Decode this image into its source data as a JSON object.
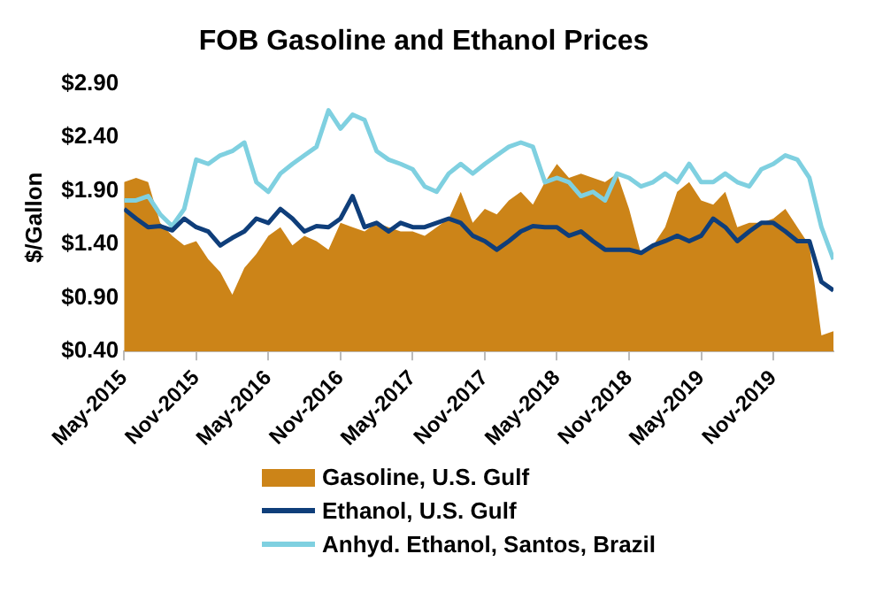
{
  "chart_data": {
    "type": "area",
    "title": "FOB Gasoline and Ethanol Prices",
    "ylabel": "$/Gallon",
    "x": [
      "2015-05",
      "2015-06",
      "2015-07",
      "2015-08",
      "2015-09",
      "2015-10",
      "2015-11",
      "2015-12",
      "2016-01",
      "2016-02",
      "2016-03",
      "2016-04",
      "2016-05",
      "2016-06",
      "2016-07",
      "2016-08",
      "2016-09",
      "2016-10",
      "2016-11",
      "2016-12",
      "2017-01",
      "2017-02",
      "2017-03",
      "2017-04",
      "2017-05",
      "2017-06",
      "2017-07",
      "2017-08",
      "2017-09",
      "2017-10",
      "2017-11",
      "2017-12",
      "2018-01",
      "2018-02",
      "2018-03",
      "2018-04",
      "2018-05",
      "2018-06",
      "2018-07",
      "2018-08",
      "2018-09",
      "2018-10",
      "2018-11",
      "2018-12",
      "2019-01",
      "2019-02",
      "2019-03",
      "2019-04",
      "2019-05",
      "2019-06",
      "2019-07",
      "2019-08",
      "2019-09",
      "2019-10",
      "2019-11",
      "2019-12",
      "2020-01",
      "2020-02",
      "2020-03",
      "2020-04"
    ],
    "series": [
      {
        "name": "Gasoline, U.S. Gulf",
        "type": "area",
        "color": "#cc8418",
        "values": [
          1.98,
          2.02,
          1.98,
          1.6,
          1.48,
          1.39,
          1.43,
          1.26,
          1.14,
          0.93,
          1.18,
          1.31,
          1.48,
          1.56,
          1.39,
          1.48,
          1.43,
          1.35,
          1.6,
          1.56,
          1.52,
          1.6,
          1.56,
          1.52,
          1.52,
          1.48,
          1.56,
          1.64,
          1.89,
          1.6,
          1.73,
          1.68,
          1.81,
          1.89,
          1.77,
          1.98,
          2.15,
          2.02,
          2.06,
          2.02,
          1.98,
          2.06,
          1.73,
          1.31,
          1.39,
          1.56,
          1.89,
          1.98,
          1.81,
          1.77,
          1.89,
          1.56,
          1.6,
          1.6,
          1.64,
          1.73,
          1.56,
          1.39,
          0.55,
          0.59
        ]
      },
      {
        "name": "Ethanol, U.S. Gulf",
        "type": "line",
        "color": "#0f3e7a",
        "values": [
          1.73,
          1.64,
          1.56,
          1.57,
          1.53,
          1.64,
          1.56,
          1.52,
          1.39,
          1.46,
          1.52,
          1.64,
          1.6,
          1.73,
          1.64,
          1.52,
          1.57,
          1.56,
          1.64,
          1.85,
          1.56,
          1.6,
          1.52,
          1.6,
          1.56,
          1.56,
          1.6,
          1.64,
          1.6,
          1.48,
          1.43,
          1.35,
          1.43,
          1.52,
          1.57,
          1.56,
          1.56,
          1.48,
          1.52,
          1.43,
          1.35,
          1.35,
          1.35,
          1.32,
          1.39,
          1.43,
          1.48,
          1.43,
          1.48,
          1.64,
          1.56,
          1.43,
          1.52,
          1.6,
          1.6,
          1.52,
          1.43,
          1.43,
          1.05,
          0.97
        ]
      },
      {
        "name": "Anhyd. Ethanol, Santos, Brazil",
        "type": "line",
        "color": "#7fd0e0",
        "values": [
          1.81,
          1.81,
          1.85,
          1.68,
          1.57,
          1.73,
          2.19,
          2.15,
          2.23,
          2.27,
          2.35,
          1.98,
          1.89,
          2.06,
          2.15,
          2.23,
          2.31,
          2.65,
          2.48,
          2.61,
          2.56,
          2.27,
          2.19,
          2.15,
          2.1,
          1.94,
          1.89,
          2.06,
          2.15,
          2.06,
          2.15,
          2.23,
          2.31,
          2.35,
          2.31,
          1.98,
          2.02,
          1.98,
          1.85,
          1.89,
          1.81,
          2.06,
          2.02,
          1.94,
          1.98,
          2.06,
          1.98,
          2.15,
          1.98,
          1.98,
          2.06,
          1.98,
          1.94,
          2.1,
          2.15,
          2.23,
          2.19,
          2.02,
          1.56,
          1.26
        ]
      }
    ],
    "xlim": [
      "2015-05",
      "2020-04"
    ],
    "xticks": [
      {
        "value": "2015-05",
        "label": "May-2015"
      },
      {
        "value": "2015-11",
        "label": "Nov-2015"
      },
      {
        "value": "2016-05",
        "label": "May-2016"
      },
      {
        "value": "2016-11",
        "label": "Nov-2016"
      },
      {
        "value": "2017-05",
        "label": "May-2017"
      },
      {
        "value": "2017-11",
        "label": "Nov-2017"
      },
      {
        "value": "2018-05",
        "label": "May-2018"
      },
      {
        "value": "2018-11",
        "label": "Nov-2018"
      },
      {
        "value": "2019-05",
        "label": "May-2019"
      },
      {
        "value": "2019-11",
        "label": "Nov-2019"
      }
    ],
    "ylim": [
      0.4,
      2.9
    ],
    "yticks": [
      {
        "value": 0.4,
        "label": "$0.40"
      },
      {
        "value": 0.9,
        "label": "$0.90"
      },
      {
        "value": 1.4,
        "label": "$1.40"
      },
      {
        "value": 1.9,
        "label": "$1.90"
      },
      {
        "value": 2.4,
        "label": "$2.40"
      },
      {
        "value": 2.9,
        "label": "$2.90"
      }
    ],
    "grid": false,
    "legend": "bottom",
    "marker": "none",
    "line_style": "solid"
  }
}
